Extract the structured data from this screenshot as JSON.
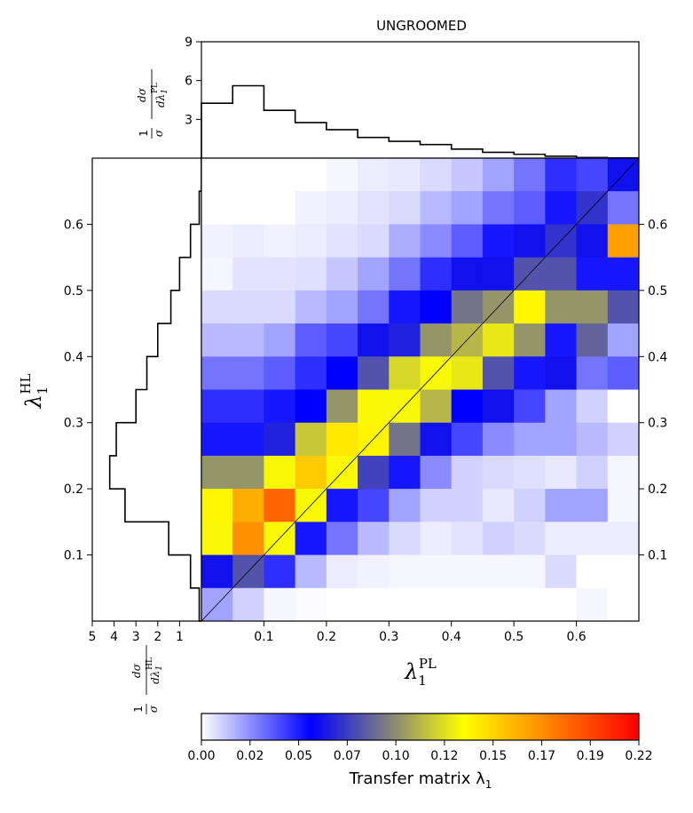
{
  "chart_data": {
    "type": "heatmap",
    "title": "UNGROOMED",
    "xlabel": "λ₁ᴾᴸ",
    "xlabel_base": "λ",
    "xlabel_sub": "1",
    "xlabel_sup": "PL",
    "ylabel": "λ₁ᴴᴸ",
    "ylabel_base": "λ",
    "ylabel_sub": "1",
    "ylabel_sup": "HL",
    "bin_edges": [
      0,
      0.05,
      0.1,
      0.15,
      0.2,
      0.25,
      0.3,
      0.35,
      0.4,
      0.45,
      0.5,
      0.55,
      0.6,
      0.65,
      0.7
    ],
    "xlim": [
      0,
      0.7
    ],
    "ylim": [
      0,
      0.7
    ],
    "x_ticks": [
      "0.1",
      "0.2",
      "0.3",
      "0.4",
      "0.5",
      "0.6"
    ],
    "y_ticks": [
      "0.1",
      "0.2",
      "0.3",
      "0.4",
      "0.5",
      "0.6"
    ],
    "diagonal": true,
    "colorbar": {
      "label": "Transfer matrix λ₁",
      "label_base": "Transfer matrix λ",
      "label_sub": "1",
      "range": [
        0,
        0.22
      ],
      "ticks": [
        "0.00",
        "0.02",
        "0.05",
        "0.07",
        "0.10",
        "0.12",
        "0.15",
        "0.17",
        "0.19",
        "0.22"
      ],
      "colors": [
        "#ffffff",
        "#0000ff",
        "#ffff00",
        "#ff0000"
      ]
    },
    "matrix_rows_from_top": [
      [
        0.0,
        0.0,
        0.0,
        0.0,
        0.002,
        0.004,
        0.005,
        0.008,
        0.012,
        0.02,
        0.03,
        0.045,
        0.04,
        0.06
      ],
      [
        0.0,
        0.0,
        0.0,
        0.003,
        0.004,
        0.006,
        0.008,
        0.015,
        0.02,
        0.03,
        0.035,
        0.05,
        0.07,
        0.03
      ],
      [
        0.003,
        0.004,
        0.003,
        0.004,
        0.006,
        0.008,
        0.018,
        0.025,
        0.035,
        0.05,
        0.06,
        0.07,
        0.06,
        0.165
      ],
      [
        0.002,
        0.006,
        0.006,
        0.007,
        0.012,
        0.02,
        0.03,
        0.045,
        0.06,
        0.06,
        0.08,
        0.08,
        0.05,
        0.05
      ],
      [
        0.008,
        0.008,
        0.008,
        0.015,
        0.02,
        0.03,
        0.05,
        0.055,
        0.09,
        0.1,
        0.135,
        0.1,
        0.1,
        0.08
      ],
      [
        0.015,
        0.015,
        0.02,
        0.035,
        0.04,
        0.06,
        0.065,
        0.1,
        0.11,
        0.125,
        0.1,
        0.05,
        0.085,
        0.02
      ],
      [
        0.03,
        0.03,
        0.035,
        0.045,
        0.055,
        0.08,
        0.12,
        0.13,
        0.125,
        0.08,
        0.05,
        0.06,
        0.03,
        0.035
      ],
      [
        0.045,
        0.045,
        0.05,
        0.055,
        0.1,
        0.13,
        0.13,
        0.11,
        0.055,
        0.06,
        0.04,
        0.02,
        0.01,
        0.0
      ],
      [
        0.05,
        0.05,
        0.065,
        0.115,
        0.14,
        0.135,
        0.09,
        0.06,
        0.04,
        0.025,
        0.02,
        0.02,
        0.015,
        0.01
      ],
      [
        0.1,
        0.1,
        0.13,
        0.15,
        0.13,
        0.075,
        0.05,
        0.025,
        0.01,
        0.008,
        0.007,
        0.005,
        0.01,
        0.002
      ],
      [
        0.135,
        0.16,
        0.185,
        0.13,
        0.05,
        0.04,
        0.02,
        0.01,
        0.01,
        0.005,
        0.01,
        0.02,
        0.02,
        0.002
      ],
      [
        0.13,
        0.17,
        0.13,
        0.05,
        0.03,
        0.015,
        0.008,
        0.004,
        0.006,
        0.01,
        0.008,
        0.004,
        0.004,
        0.004
      ],
      [
        0.06,
        0.08,
        0.045,
        0.015,
        0.004,
        0.003,
        0.002,
        0.002,
        0.002,
        0.002,
        0.002,
        0.008,
        0.0,
        0.0
      ],
      [
        0.02,
        0.01,
        0.002,
        0.001,
        0.0,
        0.0,
        0.0,
        0.0,
        0.0,
        0.0,
        0.0,
        0.0,
        0.002,
        0.0
      ]
    ],
    "top_histogram": {
      "axis_label": "1/σ dσ/dλ₁ᴾᴸ",
      "ylim": [
        0,
        9
      ],
      "y_ticks": [
        "3",
        "6",
        "9"
      ],
      "values": [
        4.25,
        5.6,
        3.7,
        2.75,
        2.2,
        1.6,
        1.3,
        1.05,
        0.7,
        0.45,
        0.3,
        0.15,
        0.05,
        0.02
      ]
    },
    "left_histogram": {
      "axis_label": "1/σ dσ/dλ₁ᴴᴸ",
      "xlim": [
        5,
        0
      ],
      "x_ticks": [
        "5",
        "4",
        "3",
        "2",
        "1"
      ],
      "values_from_bottom": [
        0.1,
        0.5,
        1.5,
        3.5,
        4.2,
        3.9,
        3.0,
        2.5,
        2.0,
        1.4,
        1.0,
        0.5,
        0.1,
        0.0
      ]
    }
  }
}
